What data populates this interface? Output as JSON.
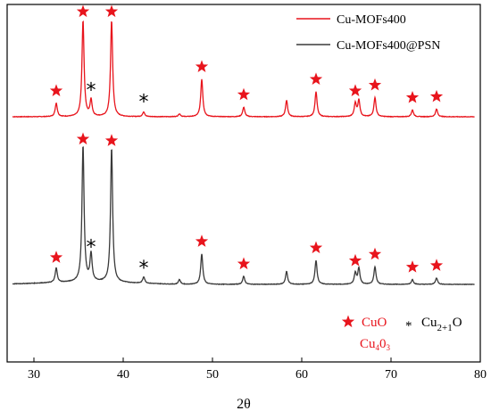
{
  "chart_data": {
    "type": "line",
    "xlabel": "2θ",
    "xlim": [
      27,
      80
    ],
    "xticks": [
      30,
      40,
      50,
      60,
      70,
      80
    ],
    "ylabel": "",
    "yticks": [],
    "grid": false,
    "legend": {
      "placement": "top-right",
      "entries": [
        {
          "label": "Cu-MOFs400",
          "color": "#e8141c"
        },
        {
          "label": "Cu-MOFs400@PSN",
          "color": "#3a3a3a"
        }
      ]
    },
    "peak_key": {
      "star_label": "CuO",
      "star_color": "#e8141c",
      "star_sublabel": "Cu",
      "star_sublabel_sub1": "4",
      "star_sublabel_mid": "0",
      "star_sublabel_sub2": "3",
      "asterisk_label": "Cu",
      "asterisk_sub": "2+1",
      "asterisk_suffix": "O"
    },
    "series": [
      {
        "name": "Cu-MOFs400",
        "color": "#e8141c",
        "peaks": [
          {
            "x": 32.5,
            "intensity": 0.14
          },
          {
            "x": 35.5,
            "intensity": 1.0
          },
          {
            "x": 36.4,
            "intensity": 0.17
          },
          {
            "x": 38.7,
            "intensity": 1.0
          },
          {
            "x": 42.3,
            "intensity": 0.05
          },
          {
            "x": 46.3,
            "intensity": 0.03
          },
          {
            "x": 48.8,
            "intensity": 0.39
          },
          {
            "x": 53.5,
            "intensity": 0.1
          },
          {
            "x": 58.3,
            "intensity": 0.17
          },
          {
            "x": 61.6,
            "intensity": 0.26
          },
          {
            "x": 66.0,
            "intensity": 0.14
          },
          {
            "x": 66.4,
            "intensity": 0.17
          },
          {
            "x": 68.2,
            "intensity": 0.2
          },
          {
            "x": 72.4,
            "intensity": 0.07
          },
          {
            "x": 75.1,
            "intensity": 0.08
          }
        ]
      },
      {
        "name": "Cu-MOFs400@PSN",
        "color": "#3a3a3a",
        "peaks": [
          {
            "x": 32.5,
            "intensity": 0.09
          },
          {
            "x": 35.5,
            "intensity": 0.85
          },
          {
            "x": 36.4,
            "intensity": 0.17
          },
          {
            "x": 38.7,
            "intensity": 0.84
          },
          {
            "x": 42.3,
            "intensity": 0.04
          },
          {
            "x": 46.3,
            "intensity": 0.03
          },
          {
            "x": 48.8,
            "intensity": 0.19
          },
          {
            "x": 53.5,
            "intensity": 0.05
          },
          {
            "x": 58.3,
            "intensity": 0.08
          },
          {
            "x": 61.6,
            "intensity": 0.15
          },
          {
            "x": 66.0,
            "intensity": 0.07
          },
          {
            "x": 66.4,
            "intensity": 0.1
          },
          {
            "x": 68.2,
            "intensity": 0.11
          },
          {
            "x": 72.4,
            "intensity": 0.03
          },
          {
            "x": 75.1,
            "intensity": 0.04
          }
        ]
      }
    ],
    "annotations": [
      {
        "series": "Cu-MOFs400",
        "phase": "CuO",
        "x": [
          32.5,
          35.5,
          38.7,
          48.8,
          53.5,
          61.6,
          66.0,
          68.2,
          72.4,
          75.1
        ]
      },
      {
        "series": "Cu-MOFs400",
        "phase": "Cu2+1O",
        "x": [
          36.4,
          42.3
        ]
      },
      {
        "series": "Cu-MOFs400@PSN",
        "phase": "CuO",
        "x": [
          32.5,
          35.5,
          38.7,
          48.8,
          53.5,
          61.6,
          66.0,
          68.2,
          72.4,
          75.1
        ]
      },
      {
        "series": "Cu-MOFs400@PSN",
        "phase": "Cu2+1O",
        "x": [
          36.4,
          42.3
        ]
      }
    ]
  }
}
